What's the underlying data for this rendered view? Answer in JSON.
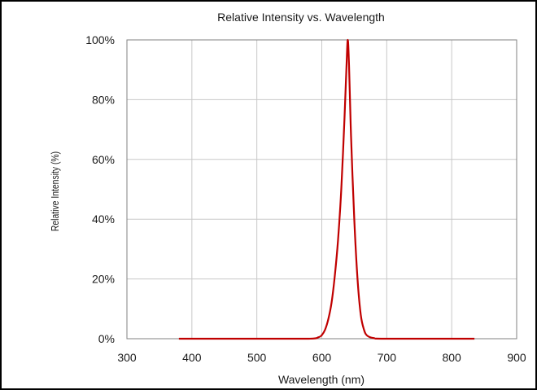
{
  "chart_data": {
    "type": "line",
    "title": "Relative Intensity vs. Wavelength",
    "xlabel": "Wavelength (nm)",
    "ylabel": "Relative Intensity (%)",
    "xlim": [
      300,
      900
    ],
    "ylim": [
      0,
      100
    ],
    "x_ticks": [
      300,
      400,
      500,
      600,
      700,
      800,
      900
    ],
    "x_tick_labels": [
      "300",
      "400",
      "500",
      "600",
      "700",
      "800",
      "900"
    ],
    "y_ticks": [
      0,
      20,
      40,
      60,
      80,
      100
    ],
    "y_tick_labels": [
      "0%",
      "20%",
      "40%",
      "60%",
      "80%",
      "100%"
    ],
    "grid": true,
    "legend": "none",
    "colors": {
      "series": "#c00000",
      "grid": "#c8c8c8",
      "axis": "#808080"
    },
    "series": [
      {
        "x": [
          380,
          500,
          580,
          595,
          600,
          605,
          610,
          615,
          620,
          625,
          630,
          635,
          638,
          640,
          642,
          645,
          650,
          655,
          660,
          665,
          670,
          680,
          700,
          835
        ],
        "y": [
          0,
          0,
          0,
          0.5,
          1.2,
          3,
          6.5,
          12,
          21,
          33,
          50,
          74,
          91,
          100,
          91,
          68,
          40,
          20,
          8,
          3,
          1,
          0.2,
          0,
          0
        ]
      }
    ]
  }
}
